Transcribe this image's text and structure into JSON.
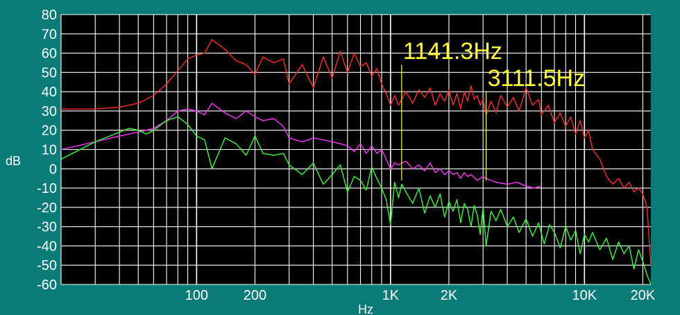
{
  "chart_data": {
    "type": "line",
    "xlabel": "Hz",
    "ylabel": "dB",
    "x_scale": "log",
    "xlim": [
      20,
      22000
    ],
    "ylim": [
      -60,
      80
    ],
    "grid": true,
    "background": "#000000",
    "frame_color": "#0a7c78",
    "x_tick_labels": [
      {
        "value": 100,
        "label": "100"
      },
      {
        "value": 200,
        "label": "200"
      },
      {
        "value": 1000,
        "label": "1K"
      },
      {
        "value": 2000,
        "label": "2K"
      },
      {
        "value": 10000,
        "label": "10K"
      },
      {
        "value": 20000,
        "label": "20K"
      }
    ],
    "y_ticks": [
      80,
      70,
      60,
      50,
      40,
      30,
      20,
      10,
      0,
      -10,
      -20,
      -30,
      -40,
      -50,
      -60
    ],
    "markers": [
      {
        "freq": 1141.3,
        "label": "1141.3Hz",
        "y_top": 54,
        "color": "#ffff33"
      },
      {
        "freq": 3111.5,
        "label": "3111.5Hz",
        "y_top": 40,
        "color": "#ffff33"
      }
    ],
    "series": [
      {
        "color": "#ff2a2a",
        "points": [
          [
            20,
            31
          ],
          [
            30,
            31
          ],
          [
            40,
            32
          ],
          [
            50,
            34
          ],
          [
            60,
            38
          ],
          [
            70,
            44
          ],
          [
            80,
            51
          ],
          [
            90,
            57
          ],
          [
            100,
            59
          ],
          [
            110,
            60
          ],
          [
            120,
            67
          ],
          [
            140,
            62
          ],
          [
            160,
            56
          ],
          [
            180,
            54
          ],
          [
            200,
            49
          ],
          [
            220,
            58
          ],
          [
            250,
            55
          ],
          [
            280,
            57
          ],
          [
            300,
            44
          ],
          [
            350,
            54
          ],
          [
            400,
            42
          ],
          [
            450,
            58
          ],
          [
            500,
            47
          ],
          [
            550,
            61
          ],
          [
            600,
            50
          ],
          [
            650,
            60
          ],
          [
            700,
            53
          ],
          [
            750,
            55
          ],
          [
            800,
            48
          ],
          [
            850,
            52
          ],
          [
            900,
            44
          ],
          [
            950,
            39
          ],
          [
            1000,
            33
          ],
          [
            1050,
            38
          ],
          [
            1100,
            33
          ],
          [
            1141.3,
            36
          ],
          [
            1200,
            40
          ],
          [
            1300,
            34
          ],
          [
            1400,
            41
          ],
          [
            1500,
            37
          ],
          [
            1600,
            42
          ],
          [
            1700,
            33
          ],
          [
            1800,
            39
          ],
          [
            1900,
            35
          ],
          [
            2000,
            41
          ],
          [
            2100,
            33
          ],
          [
            2200,
            39
          ],
          [
            2300,
            31
          ],
          [
            2400,
            40
          ],
          [
            2500,
            35
          ],
          [
            2600,
            43
          ],
          [
            2700,
            36
          ],
          [
            2800,
            38
          ],
          [
            2900,
            33
          ],
          [
            3000,
            36
          ],
          [
            3111.5,
            28
          ],
          [
            3300,
            35
          ],
          [
            3500,
            29
          ],
          [
            3700,
            38
          ],
          [
            4000,
            32
          ],
          [
            4300,
            37
          ],
          [
            4600,
            30
          ],
          [
            5000,
            42
          ],
          [
            5400,
            33
          ],
          [
            5800,
            36
          ],
          [
            6000,
            28
          ],
          [
            6500,
            33
          ],
          [
            7000,
            24
          ],
          [
            7500,
            29
          ],
          [
            8000,
            22
          ],
          [
            8500,
            27
          ],
          [
            9000,
            18
          ],
          [
            9500,
            25
          ],
          [
            10000,
            16
          ],
          [
            10500,
            20
          ],
          [
            11000,
            10
          ],
          [
            12000,
            5
          ],
          [
            13000,
            -4
          ],
          [
            14000,
            -8
          ],
          [
            15000,
            -5
          ],
          [
            16000,
            -10
          ],
          [
            17000,
            -7
          ],
          [
            18000,
            -12
          ],
          [
            19000,
            -10
          ],
          [
            20000,
            -13
          ],
          [
            21000,
            -20
          ],
          [
            22000,
            -50
          ]
        ]
      },
      {
        "color": "#ff33ff",
        "points": [
          [
            20,
            10
          ],
          [
            30,
            14
          ],
          [
            40,
            17
          ],
          [
            50,
            19
          ],
          [
            60,
            21
          ],
          [
            70,
            25
          ],
          [
            80,
            30
          ],
          [
            90,
            31
          ],
          [
            100,
            30
          ],
          [
            110,
            28
          ],
          [
            120,
            34
          ],
          [
            140,
            29
          ],
          [
            160,
            26
          ],
          [
            180,
            30
          ],
          [
            200,
            27
          ],
          [
            220,
            25
          ],
          [
            250,
            26
          ],
          [
            280,
            22
          ],
          [
            300,
            16
          ],
          [
            350,
            14
          ],
          [
            400,
            16
          ],
          [
            450,
            15
          ],
          [
            500,
            14
          ],
          [
            550,
            13
          ],
          [
            600,
            12
          ],
          [
            650,
            9
          ],
          [
            700,
            13
          ],
          [
            750,
            8
          ],
          [
            800,
            12
          ],
          [
            850,
            8
          ],
          [
            900,
            10
          ],
          [
            950,
            5
          ],
          [
            1000,
            0
          ],
          [
            1050,
            3
          ],
          [
            1100,
            2
          ],
          [
            1141.3,
            3
          ],
          [
            1200,
            4
          ],
          [
            1300,
            0
          ],
          [
            1400,
            2
          ],
          [
            1500,
            -1
          ],
          [
            1600,
            3
          ],
          [
            1700,
            -2
          ],
          [
            1800,
            0
          ],
          [
            1900,
            -3
          ],
          [
            2000,
            -1
          ],
          [
            2100,
            -3
          ],
          [
            2200,
            -2
          ],
          [
            2300,
            -5
          ],
          [
            2400,
            -2
          ],
          [
            2500,
            -4
          ],
          [
            2600,
            -3
          ],
          [
            2800,
            -6
          ],
          [
            3000,
            -4
          ],
          [
            3111.5,
            -5
          ],
          [
            3300,
            -6
          ],
          [
            3500,
            -7
          ],
          [
            4000,
            -8
          ],
          [
            4500,
            -7
          ],
          [
            5000,
            -9
          ],
          [
            5500,
            -10
          ],
          [
            6000,
            -9
          ]
        ]
      },
      {
        "color": "#33ff33",
        "points": [
          [
            20,
            5
          ],
          [
            30,
            14
          ],
          [
            40,
            19
          ],
          [
            45,
            21
          ],
          [
            50,
            20
          ],
          [
            55,
            18
          ],
          [
            60,
            20
          ],
          [
            70,
            25
          ],
          [
            80,
            27
          ],
          [
            90,
            23
          ],
          [
            100,
            17
          ],
          [
            110,
            15
          ],
          [
            120,
            0
          ],
          [
            140,
            16
          ],
          [
            160,
            13
          ],
          [
            180,
            7
          ],
          [
            200,
            17
          ],
          [
            220,
            8
          ],
          [
            250,
            7
          ],
          [
            280,
            8
          ],
          [
            300,
            2
          ],
          [
            350,
            -3
          ],
          [
            400,
            3
          ],
          [
            450,
            -8
          ],
          [
            500,
            -3
          ],
          [
            550,
            2
          ],
          [
            600,
            -12
          ],
          [
            650,
            -4
          ],
          [
            700,
            -6
          ],
          [
            750,
            -11
          ],
          [
            800,
            1
          ],
          [
            850,
            -5
          ],
          [
            900,
            -10
          ],
          [
            950,
            -16
          ],
          [
            1000,
            -29
          ],
          [
            1050,
            -7
          ],
          [
            1100,
            -15
          ],
          [
            1141.3,
            -8
          ],
          [
            1200,
            -12
          ],
          [
            1300,
            -18
          ],
          [
            1400,
            -10
          ],
          [
            1500,
            -23
          ],
          [
            1600,
            -14
          ],
          [
            1700,
            -20
          ],
          [
            1800,
            -13
          ],
          [
            1900,
            -25
          ],
          [
            2000,
            -17
          ],
          [
            2100,
            -22
          ],
          [
            2200,
            -16
          ],
          [
            2300,
            -28
          ],
          [
            2400,
            -18
          ],
          [
            2500,
            -21
          ],
          [
            2600,
            -30
          ],
          [
            2700,
            -19
          ],
          [
            2800,
            -24
          ],
          [
            2900,
            -34
          ],
          [
            3000,
            -20
          ],
          [
            3111.5,
            -40
          ],
          [
            3300,
            -22
          ],
          [
            3500,
            -27
          ],
          [
            3700,
            -21
          ],
          [
            4000,
            -30
          ],
          [
            4300,
            -25
          ],
          [
            4600,
            -33
          ],
          [
            5000,
            -26
          ],
          [
            5400,
            -35
          ],
          [
            5800,
            -28
          ],
          [
            6200,
            -39
          ],
          [
            6600,
            -29
          ],
          [
            7000,
            -33
          ],
          [
            7500,
            -41
          ],
          [
            8000,
            -30
          ],
          [
            8500,
            -37
          ],
          [
            9000,
            -32
          ],
          [
            9500,
            -44
          ],
          [
            10000,
            -34
          ],
          [
            10500,
            -38
          ],
          [
            11000,
            -33
          ],
          [
            12000,
            -42
          ],
          [
            13000,
            -36
          ],
          [
            14000,
            -47
          ],
          [
            15000,
            -38
          ],
          [
            16000,
            -44
          ],
          [
            17000,
            -40
          ],
          [
            18000,
            -52
          ],
          [
            19000,
            -42
          ],
          [
            20000,
            -48
          ],
          [
            21000,
            -55
          ],
          [
            22000,
            -60
          ]
        ]
      }
    ]
  }
}
